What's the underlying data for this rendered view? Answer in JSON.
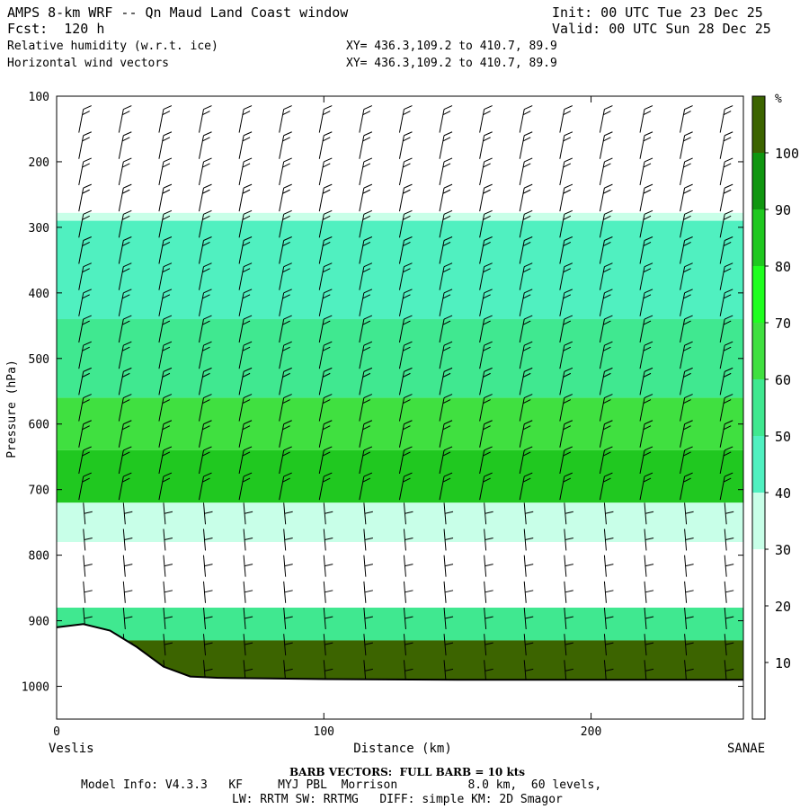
{
  "header": {
    "line1_left": "AMPS 8-km WRF -- Qn Maud Land Coast window",
    "line1_right": "Init: 00 UTC Tue 23 Dec 25",
    "line2_left": "Fcst:  120 h",
    "line2_right": "Valid: 00 UTC Sun 28 Dec 25",
    "line3_left": "Relative humidity (w.r.t. ice)",
    "line3_right": "XY= 436.3,109.2 to 410.7, 89.9",
    "line4_left": "Horizontal wind vectors",
    "line4_right": "XY= 436.3,109.2 to 410.7, 89.9"
  },
  "footer": {
    "barb_note": "BARB VECTORS:  FULL BARB = 10 kts",
    "model_line1": "Model Info: V4.3.3   KF     MYJ PBL  Morrison          8.0 km,  60 levels,",
    "model_line2": "LW: RRTM SW: RRTMG   DIFF: simple KM: 2D Smagor"
  },
  "chart_data": {
    "type": "heatmap",
    "title": "Relative humidity (w.r.t. ice)",
    "xlabel": "Distance (km)",
    "ylabel": "Pressure (hPa)",
    "x_start_label": "Veslis",
    "x_end_label": "SANAE",
    "xlim": [
      0,
      257
    ],
    "ylim": [
      1050,
      100
    ],
    "x_ticks": [
      0,
      100,
      200
    ],
    "y_ticks": [
      100,
      200,
      300,
      400,
      500,
      600,
      700,
      800,
      900,
      1000
    ],
    "colorbar": {
      "unit": "%",
      "levels": [
        0,
        10,
        20,
        30,
        40,
        50,
        60,
        70,
        80,
        90,
        100,
        110
      ],
      "labels": [
        10,
        20,
        30,
        40,
        50,
        60,
        70,
        80,
        90,
        100
      ],
      "colors": [
        "#ffffff",
        "#ffffff",
        "#ffffff",
        "#c8ffe8",
        "#50f0c0",
        "#40e890",
        "#40e040",
        "#20ff20",
        "#20c820",
        "#109610",
        "#3c6400"
      ]
    },
    "layers": [
      {
        "name": "dry-upper",
        "p_top": 100,
        "p_bottom": 278,
        "rh": 10
      },
      {
        "name": "upper-moist-edge",
        "p_top": 278,
        "p_bottom": 290,
        "rh": 35
      },
      {
        "name": "upper-moist",
        "p_top": 290,
        "p_bottom": 440,
        "rh": 45
      },
      {
        "name": "mid-moist",
        "p_top": 440,
        "p_bottom": 560,
        "rh": 55
      },
      {
        "name": "moist-band",
        "p_top": 560,
        "p_bottom": 640,
        "rh": 65
      },
      {
        "name": "very-moist-band",
        "p_top": 640,
        "p_bottom": 720,
        "rh": 80
      },
      {
        "name": "transition",
        "p_top": 720,
        "p_bottom": 780,
        "rh": 35
      },
      {
        "name": "dry-mid",
        "p_top": 780,
        "p_bottom": 880,
        "rh": 15
      },
      {
        "name": "low-moist",
        "p_top": 880,
        "p_bottom": 930,
        "rh": 50
      },
      {
        "name": "saturated-bl",
        "p_top": 930,
        "p_bottom": 1000,
        "rh": 100
      }
    ],
    "terrain": {
      "x": [
        0,
        10,
        20,
        30,
        40,
        50,
        60,
        80,
        100,
        150,
        200,
        257
      ],
      "p": [
        910,
        905,
        915,
        940,
        970,
        985,
        987,
        988,
        989,
        990,
        990,
        990
      ]
    },
    "barbs": {
      "x": [
        10,
        25,
        40,
        55,
        70,
        85,
        100,
        115,
        130,
        145,
        160,
        175,
        190,
        205,
        220,
        235,
        250
      ],
      "p": [
        120,
        160,
        200,
        240,
        280,
        320,
        360,
        400,
        440,
        480,
        520,
        560,
        600,
        640,
        680,
        720,
        760,
        800,
        840,
        880,
        920,
        960
      ]
    }
  }
}
